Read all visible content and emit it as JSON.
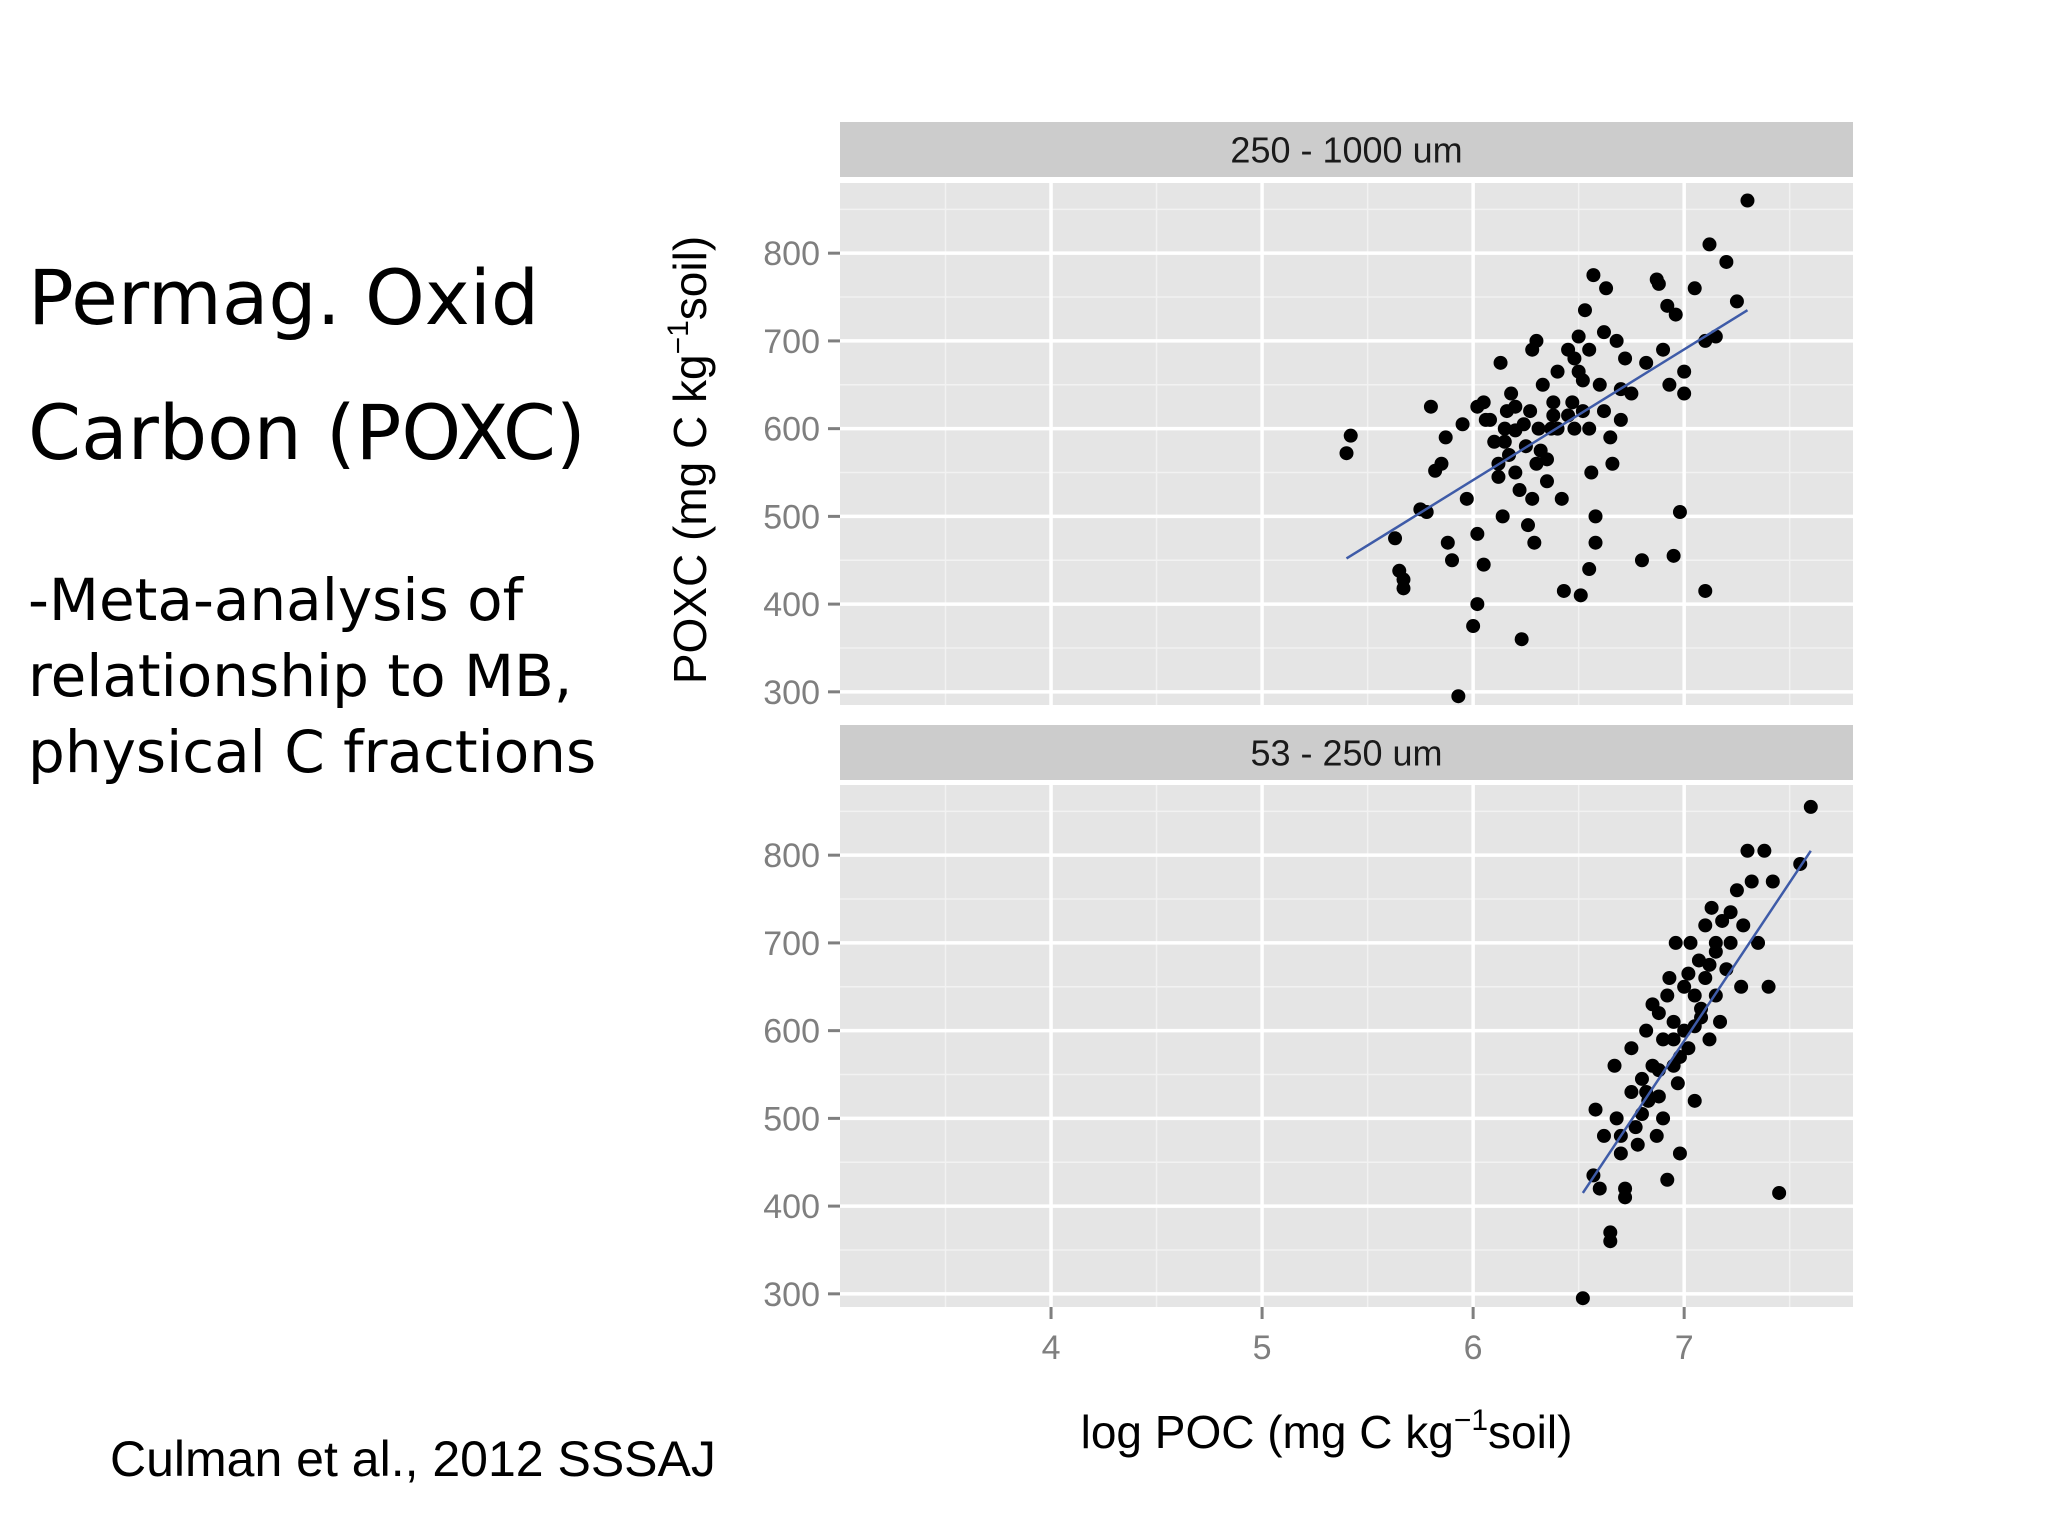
{
  "slide": {
    "title_line1": "Permag. Oxid",
    "title_line2": "Carbon (POXC)",
    "body_line1": "-Meta-analysis of",
    "body_line2": "relationship to MB,",
    "body_line3": "physical C fractions",
    "citation": "Culman et al., 2012 SSSAJ"
  },
  "colors": {
    "panel_bg": "#e5e5e5",
    "strip_bg": "#cccccc",
    "grid": "#ffffff",
    "point": "#000000",
    "fit_line": "#3e5ba8",
    "tick_text": "#7f7f7f"
  },
  "chart_data": {
    "type": "scatter",
    "facet_layout": "vertical",
    "ylabel": {
      "main": "POXC (mg C kg",
      "sup": "−1",
      "rest": "soil)"
    },
    "xlabel": {
      "main": "log POC (mg C kg",
      "sup": "−1",
      "rest": "soil)"
    },
    "xlim": [
      3,
      7.8
    ],
    "ylim": [
      285,
      880
    ],
    "x_ticks": [
      4,
      5,
      6,
      7
    ],
    "y_ticks": [
      300,
      400,
      500,
      600,
      700,
      800
    ],
    "grid": true,
    "panels": [
      {
        "title": "250 - 1000 um",
        "fit": {
          "x": [
            5.4,
            7.3
          ],
          "y": [
            452,
            735
          ]
        },
        "points": [
          [
            5.42,
            592
          ],
          [
            5.4,
            572
          ],
          [
            5.75,
            508
          ],
          [
            5.63,
            475
          ],
          [
            5.65,
            438
          ],
          [
            5.67,
            428
          ],
          [
            5.67,
            418
          ],
          [
            5.8,
            625
          ],
          [
            5.78,
            505
          ],
          [
            5.82,
            552
          ],
          [
            5.88,
            470
          ],
          [
            5.9,
            450
          ],
          [
            5.87,
            590
          ],
          [
            5.85,
            560
          ],
          [
            5.93,
            295
          ],
          [
            5.95,
            605
          ],
          [
            5.97,
            520
          ],
          [
            6.0,
            375
          ],
          [
            6.02,
            400
          ],
          [
            6.02,
            480
          ],
          [
            6.05,
            445
          ],
          [
            6.05,
            630
          ],
          [
            6.08,
            610
          ],
          [
            6.1,
            585
          ],
          [
            6.12,
            545
          ],
          [
            6.13,
            675
          ],
          [
            6.14,
            500
          ],
          [
            6.15,
            600
          ],
          [
            6.16,
            620
          ],
          [
            6.17,
            570
          ],
          [
            6.18,
            640
          ],
          [
            6.2,
            598
          ],
          [
            6.2,
            550
          ],
          [
            6.22,
            530
          ],
          [
            6.23,
            360
          ],
          [
            6.24,
            605
          ],
          [
            6.25,
            580
          ],
          [
            6.26,
            490
          ],
          [
            6.27,
            620
          ],
          [
            6.28,
            690
          ],
          [
            6.29,
            470
          ],
          [
            6.3,
            560
          ],
          [
            6.31,
            600
          ],
          [
            6.32,
            575
          ],
          [
            6.33,
            650
          ],
          [
            6.35,
            540
          ],
          [
            6.37,
            600
          ],
          [
            6.38,
            615
          ],
          [
            6.4,
            665
          ],
          [
            6.42,
            520
          ],
          [
            6.43,
            415
          ],
          [
            6.45,
            690
          ],
          [
            6.47,
            630
          ],
          [
            6.48,
            600
          ],
          [
            6.5,
            705
          ],
          [
            6.5,
            665
          ],
          [
            6.51,
            410
          ],
          [
            6.52,
            620
          ],
          [
            6.53,
            735
          ],
          [
            6.55,
            600
          ],
          [
            6.55,
            440
          ],
          [
            6.56,
            550
          ],
          [
            6.57,
            775
          ],
          [
            6.58,
            470
          ],
          [
            6.58,
            500
          ],
          [
            6.6,
            650
          ],
          [
            6.62,
            710
          ],
          [
            6.63,
            760
          ],
          [
            6.65,
            590
          ],
          [
            6.66,
            560
          ],
          [
            6.68,
            700
          ],
          [
            6.7,
            610
          ],
          [
            6.72,
            680
          ],
          [
            6.75,
            640
          ],
          [
            6.8,
            450
          ],
          [
            6.82,
            675
          ],
          [
            6.87,
            770
          ],
          [
            6.88,
            765
          ],
          [
            6.9,
            690
          ],
          [
            6.92,
            740
          ],
          [
            6.93,
            650
          ],
          [
            6.95,
            455
          ],
          [
            6.96,
            730
          ],
          [
            6.98,
            505
          ],
          [
            7.0,
            640
          ],
          [
            7.0,
            665
          ],
          [
            7.05,
            760
          ],
          [
            7.1,
            700
          ],
          [
            7.1,
            415
          ],
          [
            7.12,
            810
          ],
          [
            7.15,
            705
          ],
          [
            7.2,
            790
          ],
          [
            7.25,
            745
          ],
          [
            7.3,
            860
          ],
          [
            6.7,
            645
          ],
          [
            6.45,
            615
          ],
          [
            6.35,
            565
          ],
          [
            6.15,
            585
          ],
          [
            6.06,
            610
          ],
          [
            6.38,
            630
          ],
          [
            6.28,
            520
          ],
          [
            6.48,
            680
          ],
          [
            6.12,
            560
          ],
          [
            6.52,
            655
          ],
          [
            6.02,
            625
          ],
          [
            6.62,
            620
          ],
          [
            6.4,
            600
          ],
          [
            6.2,
            625
          ],
          [
            6.3,
            700
          ],
          [
            6.55,
            690
          ]
        ]
      },
      {
        "title": "53 - 250 um",
        "fit": {
          "x": [
            6.52,
            7.6
          ],
          "y": [
            415,
            805
          ]
        },
        "points": [
          [
            6.52,
            295
          ],
          [
            6.57,
            435
          ],
          [
            6.6,
            420
          ],
          [
            6.58,
            510
          ],
          [
            6.62,
            480
          ],
          [
            6.65,
            370
          ],
          [
            6.65,
            360
          ],
          [
            6.67,
            560
          ],
          [
            6.68,
            500
          ],
          [
            6.7,
            460
          ],
          [
            6.72,
            420
          ],
          [
            6.72,
            410
          ],
          [
            6.75,
            530
          ],
          [
            6.75,
            580
          ],
          [
            6.77,
            490
          ],
          [
            6.78,
            470
          ],
          [
            6.8,
            545
          ],
          [
            6.82,
            600
          ],
          [
            6.83,
            520
          ],
          [
            6.85,
            630
          ],
          [
            6.85,
            560
          ],
          [
            6.87,
            480
          ],
          [
            6.88,
            620
          ],
          [
            6.9,
            590
          ],
          [
            6.9,
            500
          ],
          [
            6.92,
            430
          ],
          [
            6.93,
            660
          ],
          [
            6.95,
            610
          ],
          [
            6.95,
            560
          ],
          [
            6.96,
            700
          ],
          [
            6.97,
            540
          ],
          [
            6.98,
            460
          ],
          [
            7.0,
            650
          ],
          [
            7.0,
            600
          ],
          [
            7.02,
            580
          ],
          [
            7.03,
            700
          ],
          [
            7.05,
            640
          ],
          [
            7.05,
            520
          ],
          [
            7.07,
            680
          ],
          [
            7.08,
            615
          ],
          [
            7.1,
            720
          ],
          [
            7.1,
            660
          ],
          [
            7.12,
            590
          ],
          [
            7.13,
            740
          ],
          [
            7.15,
            690
          ],
          [
            7.15,
            640
          ],
          [
            7.17,
            610
          ],
          [
            7.18,
            725
          ],
          [
            7.2,
            670
          ],
          [
            7.22,
            700
          ],
          [
            7.25,
            760
          ],
          [
            7.27,
            650
          ],
          [
            7.28,
            720
          ],
          [
            7.3,
            805
          ],
          [
            7.32,
            770
          ],
          [
            7.35,
            700
          ],
          [
            7.38,
            805
          ],
          [
            7.4,
            650
          ],
          [
            7.42,
            770
          ],
          [
            7.45,
            415
          ],
          [
            7.55,
            790
          ],
          [
            7.6,
            855
          ],
          [
            6.88,
            555
          ],
          [
            6.98,
            570
          ],
          [
            7.08,
            625
          ],
          [
            6.92,
            640
          ],
          [
            7.02,
            665
          ],
          [
            7.12,
            675
          ],
          [
            6.95,
            590
          ],
          [
            7.15,
            700
          ],
          [
            6.82,
            530
          ],
          [
            7.05,
            605
          ],
          [
            6.8,
            505
          ],
          [
            6.88,
            525
          ],
          [
            7.22,
            735
          ],
          [
            6.7,
            480
          ]
        ]
      }
    ]
  }
}
